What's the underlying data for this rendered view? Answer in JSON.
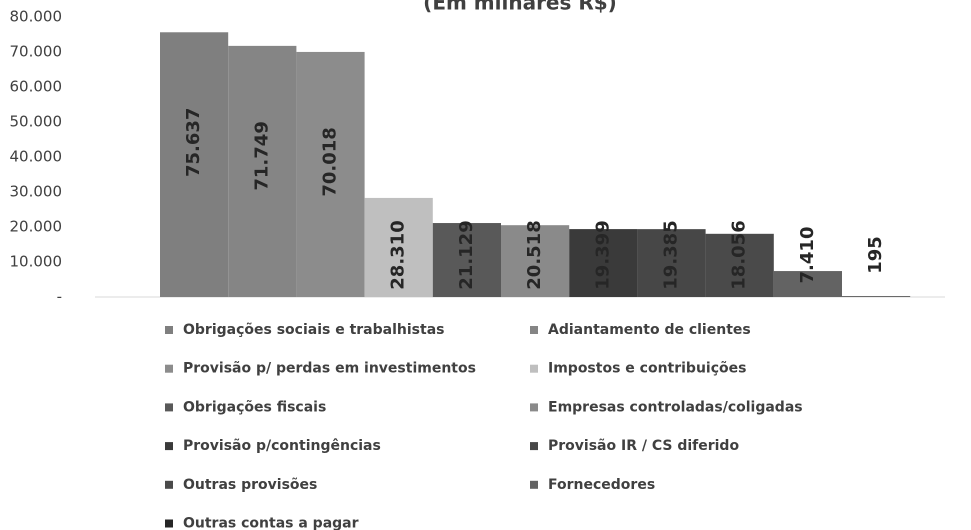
{
  "chart_data": {
    "type": "bar",
    "title": "(Em milhares R$)",
    "categories": [
      "Obrigações sociais e trabalhistas",
      "Adiantamento de clientes",
      "Provisão p/ perdas em investimentos",
      "Impostos e contribuições",
      "Obrigações fiscais",
      "Empresas controladas/coligadas",
      "Provisão p/contingências",
      "Provisão IR / CS diferido",
      "Outras provisões",
      "Fornecedores",
      "Outras contas a pagar"
    ],
    "values": [
      75637,
      71749,
      70018,
      28310,
      21129,
      20518,
      19399,
      19385,
      18056,
      7410,
      195
    ],
    "value_labels": [
      "75.637",
      "71.749",
      "70.018",
      "28.310",
      "21.129",
      "20.518",
      "19.399",
      "19.385",
      "18.056",
      "7.410",
      "195"
    ],
    "colors": [
      "#7f7f7f",
      "#858585",
      "#8c8c8c",
      "#bfbfbf",
      "#595959",
      "#8a8a8a",
      "#3a3a3a",
      "#474747",
      "#4a4a4a",
      "#636363",
      "#262626"
    ],
    "ylim": [
      0,
      80000
    ],
    "yticks": [
      {
        "value": 0,
        "label": "-"
      },
      {
        "value": 10000,
        "label": "10.000"
      },
      {
        "value": 20000,
        "label": "20.000"
      },
      {
        "value": 30000,
        "label": "30.000"
      },
      {
        "value": 40000,
        "label": "40.000"
      },
      {
        "value": 50000,
        "label": "50.000"
      },
      {
        "value": 60000,
        "label": "60.000"
      },
      {
        "value": 70000,
        "label": "70.000"
      },
      {
        "value": 80000,
        "label": "80.000"
      }
    ],
    "grid": false
  }
}
